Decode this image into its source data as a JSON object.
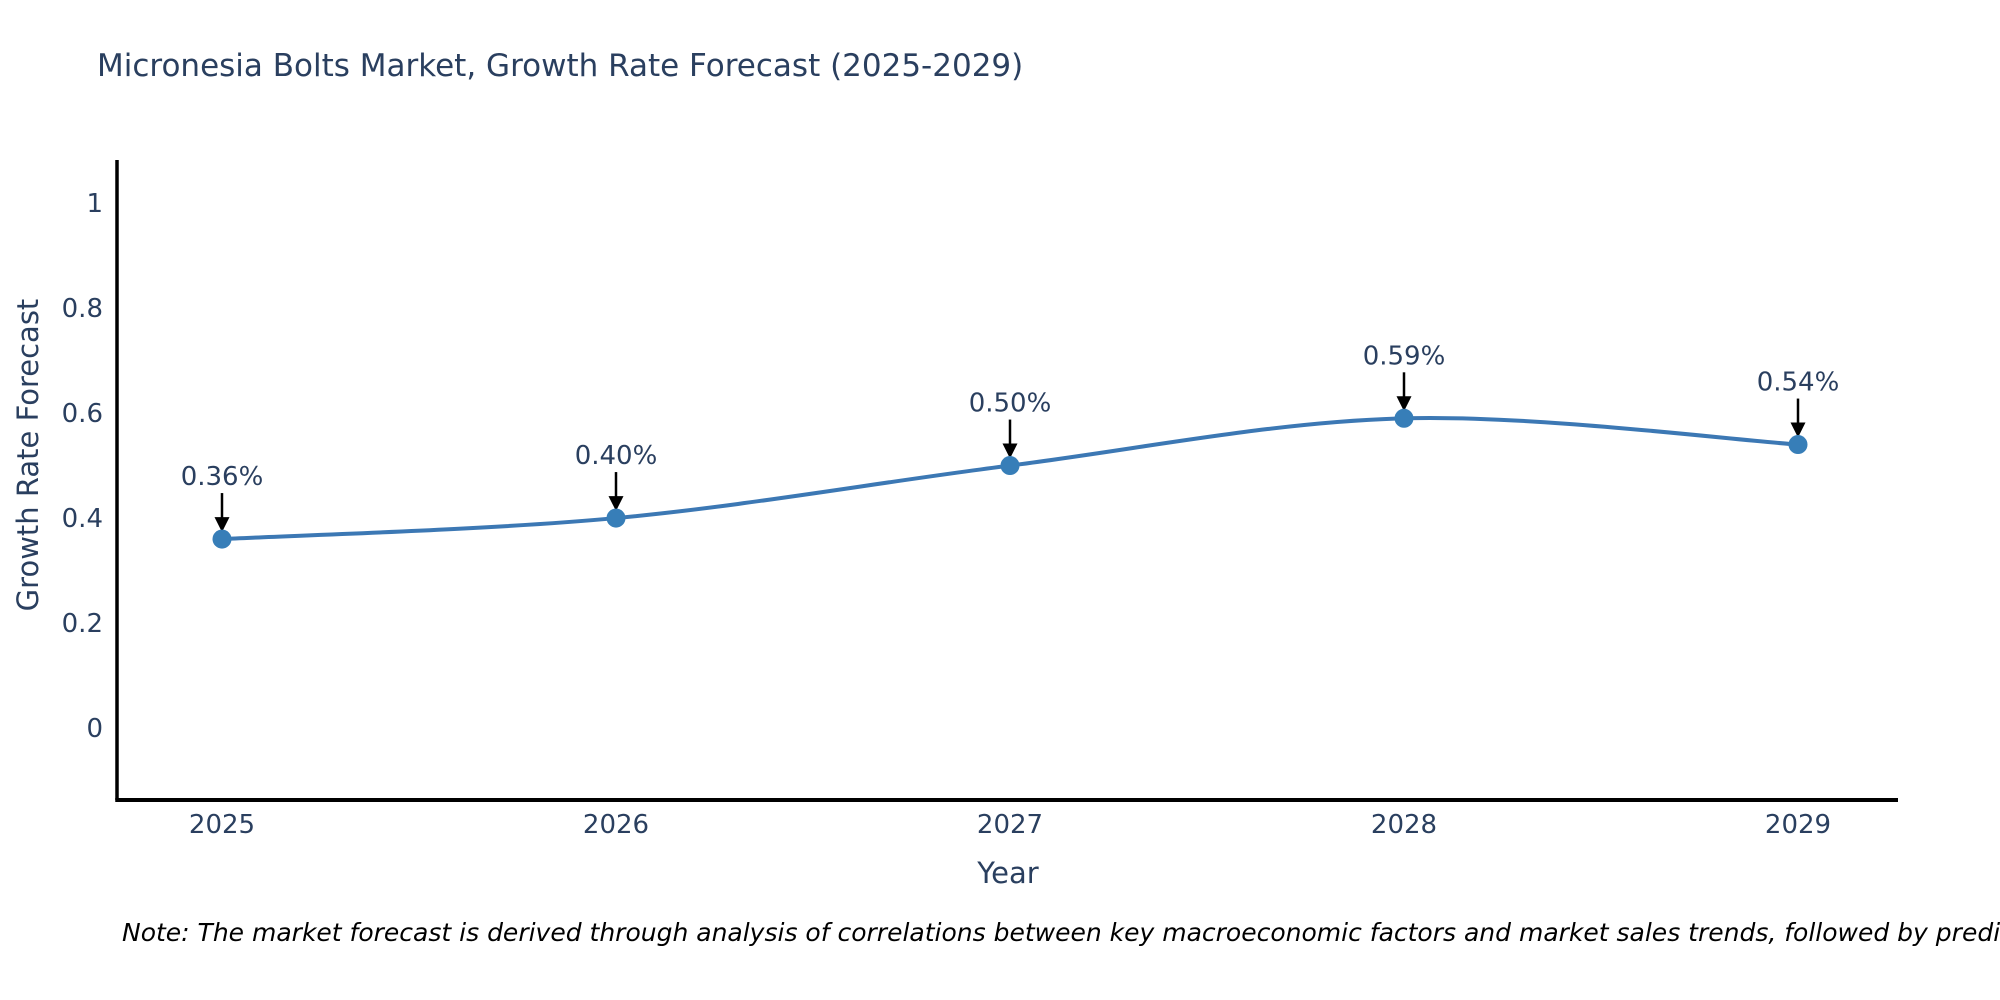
{
  "title": "Micronesia Bolts Market, Growth Rate Forecast (2025-2029)",
  "note": "Note: The market forecast is derived through analysis of correlations between key macroeconomic factors and market sales trends, followed by predictive modeling to project future sales",
  "chart_data": {
    "type": "line",
    "title": "Micronesia Bolts Market, Growth Rate Forecast (2025-2029)",
    "xlabel": "Year",
    "ylabel": "Growth Rate Forecast",
    "categories": [
      "2025",
      "2026",
      "2027",
      "2028",
      "2029"
    ],
    "values": [
      0.36,
      0.4,
      0.5,
      0.59,
      0.54
    ],
    "annotations": [
      "0.36%",
      "0.40%",
      "0.50%",
      "0.59%",
      "0.54%"
    ],
    "ytick_labels": [
      "1",
      "0.8",
      "0.6",
      "0.4",
      "0.2",
      "0"
    ],
    "ytick_values": [
      1,
      0.8,
      0.6,
      0.4,
      0.2,
      0
    ],
    "ylim": [
      -0.137,
      1.082
    ],
    "grid": false,
    "legend": "none",
    "line_shape": "spline",
    "colors": {
      "line": "#3c78b4",
      "marker": "#377eb8",
      "axis": "#000000",
      "text": "#2a3f5f",
      "annotation_arrow": "#000000"
    }
  }
}
